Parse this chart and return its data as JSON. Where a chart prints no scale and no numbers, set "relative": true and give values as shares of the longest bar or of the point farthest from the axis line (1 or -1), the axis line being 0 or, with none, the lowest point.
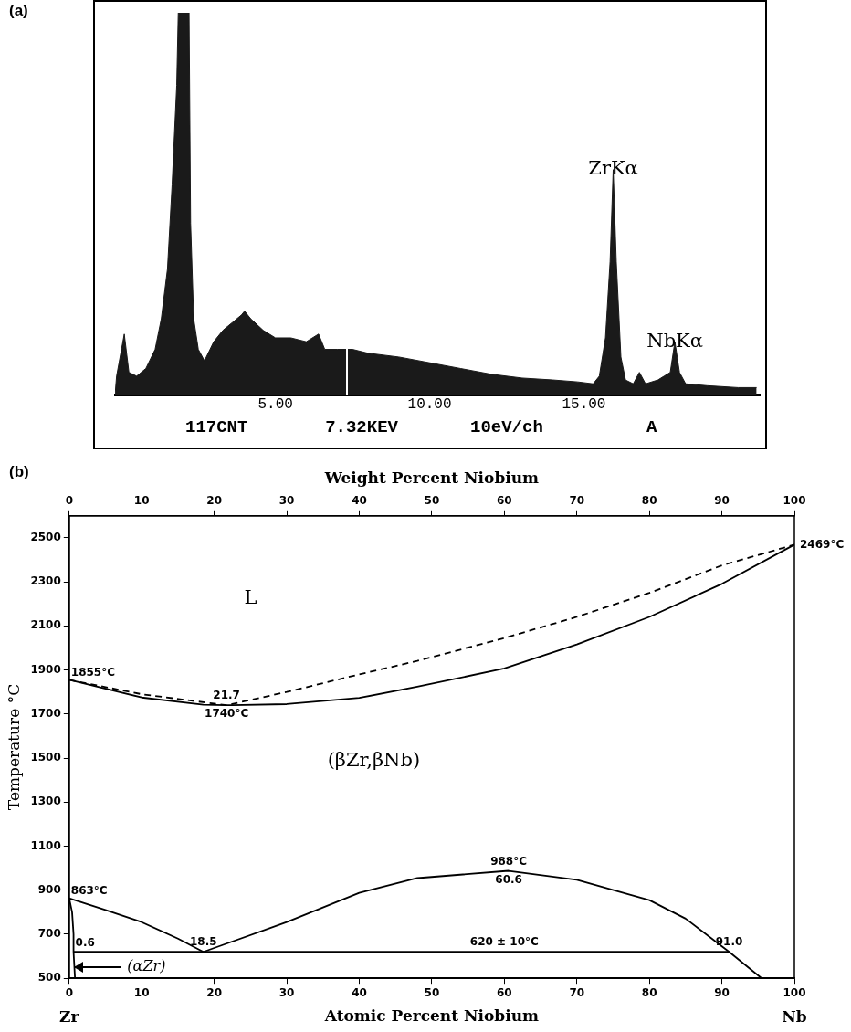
{
  "chart_data": [
    {
      "type": "area",
      "title": "(a)",
      "relative": true,
      "color": "#1a1a1a",
      "x": [
        -0.2,
        -0.15,
        0.1,
        0.25,
        0.5,
        0.8,
        1.1,
        1.3,
        1.5,
        1.65,
        1.8,
        1.85,
        2.2,
        2.25,
        2.35,
        2.5,
        2.7,
        3.0,
        3.3,
        3.6,
        3.9,
        4.0,
        4.2,
        4.6,
        5.0,
        5.5,
        6.0,
        6.4,
        6.6,
        7.0,
        7.5,
        8.0,
        9.0,
        10.0,
        11.0,
        12.0,
        13.0,
        14.0,
        14.8,
        15.3,
        15.5,
        15.7,
        15.85,
        15.95,
        16.05,
        16.2,
        16.35,
        16.6,
        16.8,
        17.0,
        17.4,
        17.6,
        17.8,
        17.95,
        18.1,
        18.3,
        19.0,
        20.0,
        20.6
      ],
      "values": [
        0,
        0.05,
        0.16,
        0.06,
        0.05,
        0.07,
        0.12,
        0.2,
        0.33,
        0.55,
        0.81,
        1,
        1,
        0.45,
        0.2,
        0.12,
        0.09,
        0.14,
        0.17,
        0.19,
        0.21,
        0.22,
        0.2,
        0.17,
        0.15,
        0.15,
        0.14,
        0.16,
        0.12,
        0.12,
        0.12,
        0.11,
        0.1,
        0.085,
        0.07,
        0.055,
        0.045,
        0.04,
        0.035,
        0.03,
        0.05,
        0.15,
        0.35,
        0.59,
        0.35,
        0.1,
        0.04,
        0.03,
        0.06,
        0.03,
        0.04,
        0.05,
        0.06,
        0.14,
        0.06,
        0.03,
        0.025,
        0.02,
        0.02
      ],
      "xlim": [
        -0.2,
        20.7
      ],
      "xticks": [
        {
          "value": 5,
          "label": "5.00"
        },
        {
          "value": 10,
          "label": "10.00"
        },
        {
          "value": 15,
          "label": "15.00"
        }
      ],
      "ref_lines": [
        {
          "axis": "x",
          "value": 7.32,
          "color": "#ffffff"
        }
      ],
      "annotations": [
        {
          "text": "ZrKα",
          "x": 15.95,
          "y": 0.59
        },
        {
          "text": "NbKα",
          "x": 17.95,
          "y": 0.14
        },
        "117CNT",
        "7.32KEV",
        "10eV/ch",
        "A"
      ]
    },
    {
      "type": "line",
      "title": "(b)",
      "xlabel": "Atomic Percent Niobium",
      "x2label": "Weight Percent Niobium",
      "ylabel": "Temperature °C",
      "xlim": [
        0,
        100
      ],
      "xticks": [
        0,
        10,
        20,
        30,
        40,
        50,
        60,
        70,
        80,
        90,
        100
      ],
      "x2lim": [
        0,
        100
      ],
      "x2ticks": [
        0,
        10,
        20,
        30,
        40,
        50,
        60,
        70,
        80,
        90,
        100
      ],
      "ylim": [
        500,
        2600
      ],
      "yticks": [
        500,
        700,
        900,
        1100,
        1300,
        1500,
        1700,
        1900,
        2100,
        2300,
        2500
      ],
      "series": [
        {
          "color": "#000000",
          "line_style": "dashed",
          "x": [
            0,
            10,
            21.7,
            30,
            40,
            48,
            60,
            70,
            80,
            90,
            100
          ],
          "values": [
            1855,
            1790,
            1740,
            1800,
            1880,
            1941,
            2045,
            2141,
            2250,
            2375,
            2469
          ]
        },
        {
          "color": "#000000",
          "line_style": "solid",
          "x": [
            0,
            10,
            18.5,
            21.7,
            30,
            40,
            48,
            60,
            70,
            80,
            90,
            100
          ],
          "values": [
            1855,
            1775,
            1742,
            1740,
            1745,
            1773,
            1824,
            1907,
            2016,
            2141,
            2291,
            2469
          ]
        },
        {
          "color": "#000000",
          "line_style": "solid",
          "x": [
            0,
            5,
            10,
            15,
            18.5
          ],
          "values": [
            863,
            810,
            755,
            680,
            620
          ]
        },
        {
          "color": "#000000",
          "line_style": "solid",
          "x": [
            18.5,
            30,
            40,
            48,
            60.6,
            70,
            80,
            85,
            91,
            95.5
          ],
          "values": [
            620,
            755,
            888,
            955,
            988,
            947,
            855,
            771,
            620,
            500
          ]
        },
        {
          "color": "#000000",
          "line_style": "solid",
          "x": [
            0.6,
            91
          ],
          "values": [
            620,
            620
          ]
        },
        {
          "color": "#000000",
          "line_style": "solid",
          "x": [
            0,
            0.4,
            0.6,
            0.6,
            0.8
          ],
          "values": [
            863,
            800,
            700,
            620,
            500
          ]
        }
      ],
      "annotations": [
        "L",
        "(βZr,βNb)",
        {
          "text": "1855°C",
          "x": 0,
          "y": 1855
        },
        {
          "text": "21.7",
          "x": 21.7,
          "y": 1740
        },
        {
          "text": "1740°C",
          "x": 21.7,
          "y": 1740
        },
        {
          "text": "2469°C",
          "x": 100,
          "y": 2469
        },
        {
          "text": "863°C",
          "x": 0,
          "y": 863
        },
        {
          "text": "988°C",
          "x": 60.6,
          "y": 988
        },
        {
          "text": "60.6",
          "x": 60.6,
          "y": 988
        },
        {
          "text": "620 ± 10°C",
          "x": 60,
          "y": 620
        },
        {
          "text": "0.6",
          "x": 0.6,
          "y": 620
        },
        {
          "text": "18.5",
          "x": 18.5,
          "y": 620
        },
        {
          "text": "91.0",
          "x": 91,
          "y": 620
        },
        "(αZr)",
        "Zr",
        "Nb"
      ]
    }
  ]
}
